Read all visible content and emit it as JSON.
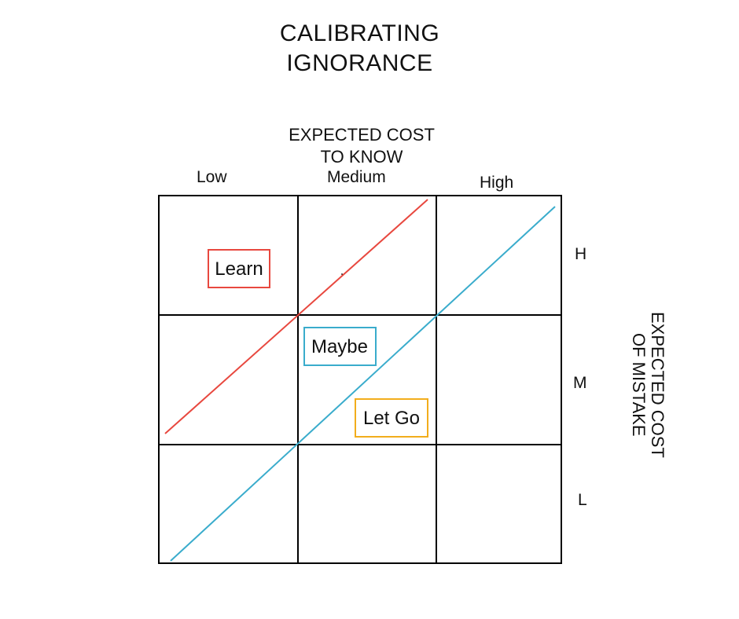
{
  "title": {
    "line1": "CALIBRATING",
    "line2": "IGNORANCE"
  },
  "x_axis": {
    "title_line1": "EXPECTED COST",
    "title_line2": "TO KNOW",
    "labels": [
      "Low",
      "Medium",
      "High"
    ]
  },
  "y_axis": {
    "title": "EXPECTED COST OF MISTAKE",
    "labels": [
      "H",
      "M",
      "L"
    ]
  },
  "regions": [
    {
      "label": "Learn",
      "color": "#e8483f"
    },
    {
      "label": "Maybe",
      "color": "#3aaccc"
    },
    {
      "label": "Let Go",
      "color": "#f2ad1c"
    }
  ],
  "lines": [
    {
      "color": "#e8483f"
    },
    {
      "color": "#3aaccc"
    }
  ],
  "grid": {
    "rows": 3,
    "cols": 3
  }
}
